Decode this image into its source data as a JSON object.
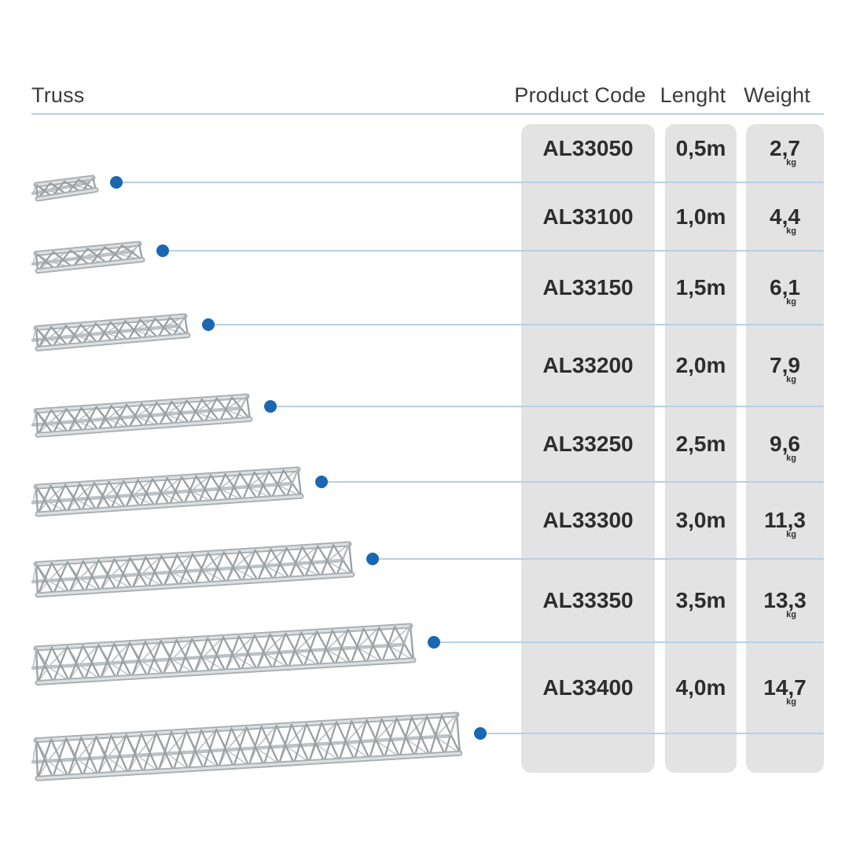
{
  "headers": {
    "truss": "Truss",
    "product_code": "Product Code",
    "length": "Lenght",
    "weight": "Weight"
  },
  "rows": [
    {
      "code": "AL33050",
      "length": "0,5m",
      "weight": "2,7",
      "unit": "kg"
    },
    {
      "code": "AL33100",
      "length": "1,0m",
      "weight": "4,4",
      "unit": "kg"
    },
    {
      "code": "AL33150",
      "length": "1,5m",
      "weight": "6,1",
      "unit": "kg"
    },
    {
      "code": "AL33200",
      "length": "2,0m",
      "weight": "7,9",
      "unit": "kg"
    },
    {
      "code": "AL33250",
      "length": "2,5m",
      "weight": "9,6",
      "unit": "kg"
    },
    {
      "code": "AL33300",
      "length": "3,0m",
      "weight": "11,3",
      "unit": "kg"
    },
    {
      "code": "AL33350",
      "length": "3,5m",
      "weight": "13,3",
      "unit": "kg"
    },
    {
      "code": "AL33400",
      "length": "4,0m",
      "weight": "14,7",
      "unit": "kg"
    }
  ],
  "colors": {
    "accent_blue": "#1a67b3",
    "line_blue": "#b6d0e8",
    "column_gray": "#e3e3e4",
    "text_dark": "#2d2d2d",
    "header_text": "#3b3b3b",
    "truss_tube": "#a9aeb1",
    "truss_highlight": "#dcdfe1",
    "truss_web": "#9aa0a3",
    "truss_back": "#bcc1c4"
  },
  "icons": {
    "row_marker": "blue-dot",
    "illustration": "triangular-truss-3d"
  }
}
